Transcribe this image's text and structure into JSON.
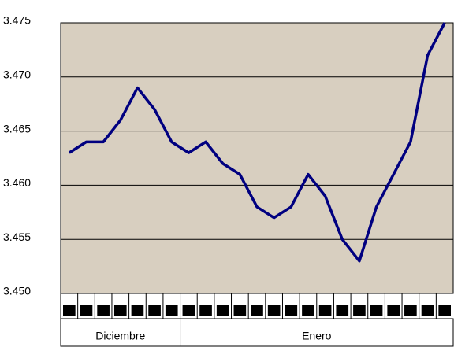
{
  "chart_data": {
    "type": "line",
    "categories": [
      null,
      null,
      null,
      null,
      null,
      null,
      null,
      null,
      null,
      null,
      null,
      null,
      null,
      null,
      null,
      null,
      null,
      null,
      null,
      null,
      null,
      null,
      null
    ],
    "x_groups": [
      {
        "label": "Diciembre",
        "size": 7
      },
      {
        "label": "Enero",
        "size": 16
      }
    ],
    "series": [
      {
        "name": null,
        "color": "#000080",
        "values": [
          3.463,
          3.464,
          3.464,
          3.466,
          3.469,
          3.467,
          3.464,
          3.463,
          3.464,
          3.462,
          3.461,
          3.458,
          3.457,
          3.458,
          3.461,
          3.459,
          3.455,
          3.453,
          3.458,
          3.461,
          3.464,
          3.472,
          3.475
        ]
      }
    ],
    "ylim": [
      3.45,
      3.475
    ],
    "yticks": [
      {
        "value": 3.45,
        "label": "3.450"
      },
      {
        "value": 3.455,
        "label": "3.455"
      },
      {
        "value": 3.46,
        "label": "3.460"
      },
      {
        "value": 3.465,
        "label": "3.465"
      },
      {
        "value": 3.47,
        "label": "3.470"
      },
      {
        "value": 3.475,
        "label": "3.475"
      }
    ],
    "grid": true
  }
}
